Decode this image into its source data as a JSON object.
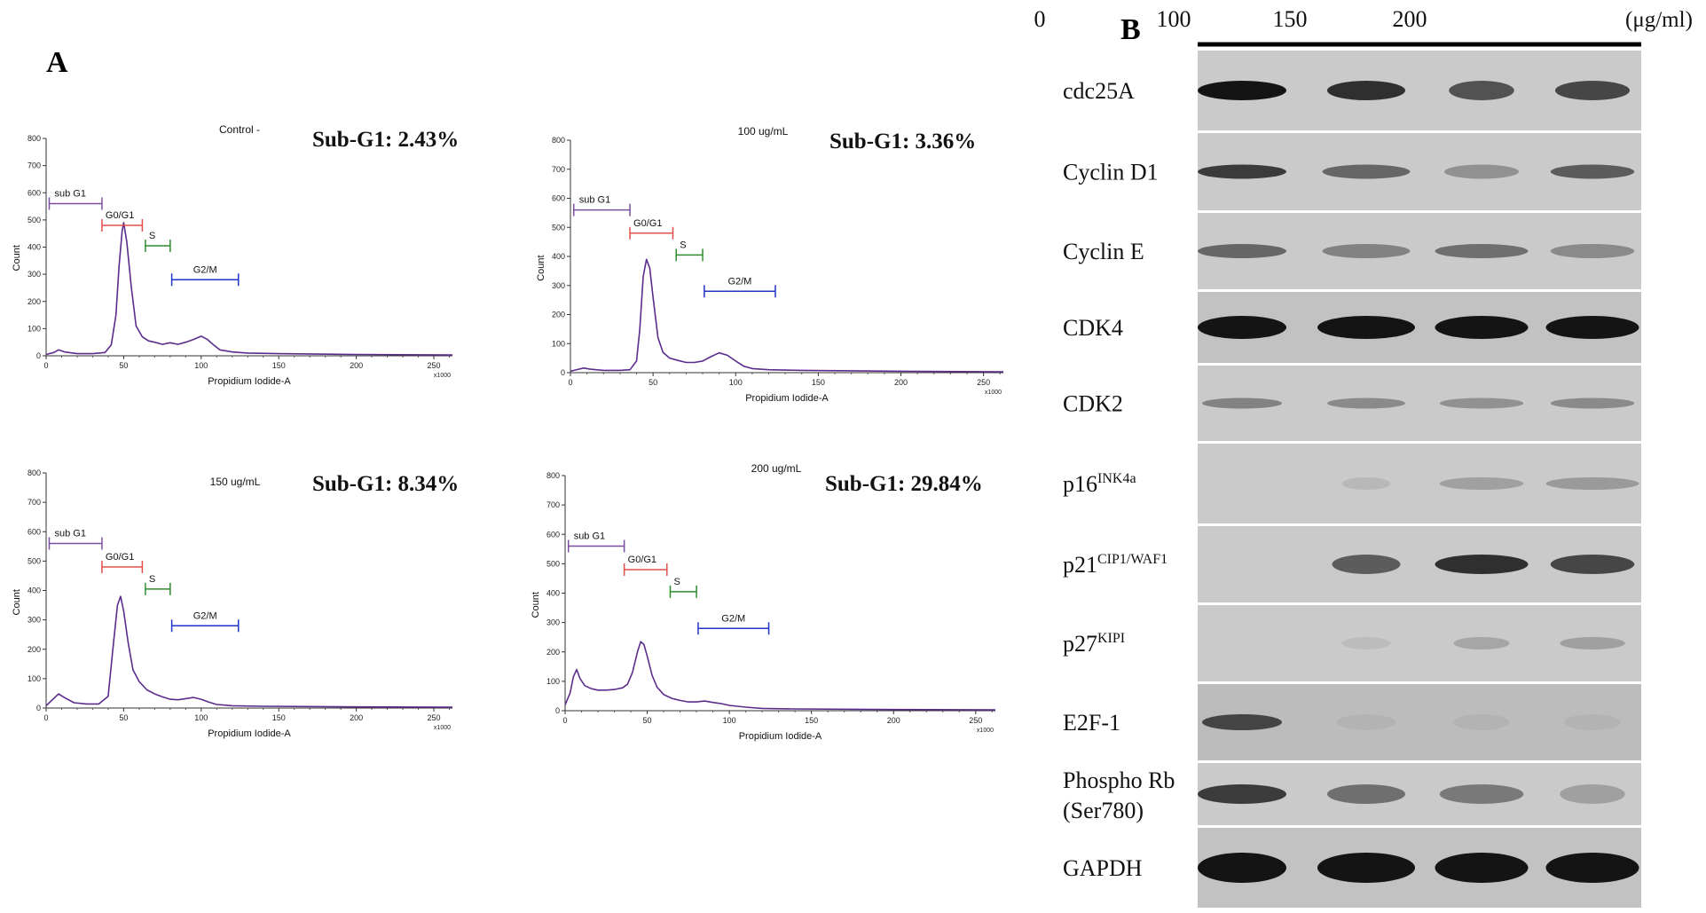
{
  "panel_a": {
    "letter": "A",
    "plots": [
      {
        "name": "control",
        "title": "Control -",
        "subg1": "Sub-G1: 2.43%",
        "ylabel": "Count",
        "xlabel": "Propidium Iodide-A",
        "x_unit": "x1000",
        "yticks": [
          "0",
          "100",
          "200",
          "300",
          "400",
          "500",
          "600",
          "700",
          "800"
        ],
        "xticks": [
          "0",
          "50",
          "100",
          "150",
          "200",
          "250"
        ],
        "gates": [
          {
            "label": "sub G1",
            "color": "#7a4fa0"
          },
          {
            "label": "G0/G1",
            "color": "#e2504a"
          },
          {
            "label": "S",
            "color": "#2e8b2e"
          },
          {
            "label": "G2/M",
            "color": "#2233cc"
          }
        ]
      },
      {
        "name": "dose-100",
        "title": "100 ug/mL",
        "subg1": "Sub-G1: 3.36%",
        "ylabel": "Count",
        "xlabel": "Propidium Iodide-A",
        "x_unit": "x1000",
        "yticks": [
          "0",
          "100",
          "200",
          "300",
          "400",
          "500",
          "600",
          "700",
          "800"
        ],
        "xticks": [
          "0",
          "50",
          "100",
          "150",
          "200",
          "250"
        ],
        "gates": [
          {
            "label": "sub G1",
            "color": "#7a4fa0"
          },
          {
            "label": "G0/G1",
            "color": "#e2504a"
          },
          {
            "label": "S",
            "color": "#2e8b2e"
          },
          {
            "label": "G2/M",
            "color": "#2233cc"
          }
        ]
      },
      {
        "name": "dose-150",
        "title": "150 ug/mL",
        "subg1": "Sub-G1: 8.34%",
        "ylabel": "Count",
        "xlabel": "Propidium Iodide-A",
        "x_unit": "x1000",
        "yticks": [
          "0",
          "100",
          "200",
          "300",
          "400",
          "500",
          "600",
          "700",
          "800"
        ],
        "xticks": [
          "0",
          "50",
          "100",
          "150",
          "200",
          "250"
        ],
        "gates": [
          {
            "label": "sub G1",
            "color": "#7a4fa0"
          },
          {
            "label": "G0/G1",
            "color": "#e2504a"
          },
          {
            "label": "S",
            "color": "#2e8b2e"
          },
          {
            "label": "G2/M",
            "color": "#2233cc"
          }
        ]
      },
      {
        "name": "dose-200",
        "title": "200 ug/mL",
        "subg1": "Sub-G1: 29.84%",
        "ylabel": "Count",
        "xlabel": "Propidium Iodide-A",
        "x_unit": "x1000",
        "yticks": [
          "0",
          "100",
          "200",
          "300",
          "400",
          "500",
          "600",
          "700",
          "800"
        ],
        "xticks": [
          "0",
          "50",
          "100",
          "150",
          "200",
          "250"
        ],
        "gates": [
          {
            "label": "sub G1",
            "color": "#7a4fa0"
          },
          {
            "label": "G0/G1",
            "color": "#e2504a"
          },
          {
            "label": "S",
            "color": "#2e8b2e"
          },
          {
            "label": "G2/M",
            "color": "#2233cc"
          }
        ]
      }
    ]
  },
  "panel_b": {
    "letter": "B",
    "doses": [
      "0",
      "100",
      "150",
      "200"
    ],
    "unit": "(μg/ml)",
    "proteins": [
      {
        "label": "cdc25A",
        "sup": ""
      },
      {
        "label": "Cyclin D1",
        "sup": ""
      },
      {
        "label": "Cyclin E",
        "sup": ""
      },
      {
        "label": "CDK4",
        "sup": ""
      },
      {
        "label": "CDK2",
        "sup": ""
      },
      {
        "label": "p16",
        "sup": "INK4a"
      },
      {
        "label": "p21",
        "sup": "CIP1/WAF1"
      },
      {
        "label": "p27",
        "sup": "KIPI"
      },
      {
        "label": "E2F-1",
        "sup": ""
      },
      {
        "label": "Phospho Rb",
        "label2": "(Ser780)",
        "sup": ""
      },
      {
        "label": "GAPDH",
        "sup": ""
      }
    ]
  },
  "chart_data": [
    {
      "type": "area",
      "name": "control",
      "title": "Control -",
      "xlabel": "Propidium Iodide-A",
      "ylabel": "Count",
      "xlim": [
        0,
        262
      ],
      "ylim": [
        0,
        800
      ],
      "x": [
        0,
        5,
        8,
        12,
        20,
        30,
        38,
        42,
        45,
        47,
        49,
        50,
        52,
        55,
        58,
        62,
        66,
        70,
        75,
        80,
        85,
        90,
        95,
        100,
        104,
        108,
        112,
        120,
        130,
        150,
        200,
        262
      ],
      "y": [
        5,
        12,
        22,
        14,
        8,
        8,
        12,
        40,
        150,
        330,
        460,
        490,
        420,
        250,
        110,
        70,
        55,
        50,
        42,
        48,
        42,
        50,
        60,
        72,
        60,
        40,
        22,
        14,
        10,
        8,
        5,
        3
      ],
      "gates": [
        {
          "label": "sub G1",
          "from": 2,
          "to": 36
        },
        {
          "label": "G0/G1",
          "from": 36,
          "to": 62
        },
        {
          "label": "S",
          "from": 64,
          "to": 80
        },
        {
          "label": "G2/M",
          "from": 81,
          "to": 124
        }
      ]
    },
    {
      "type": "area",
      "name": "dose-100",
      "title": "100 ug/mL",
      "xlabel": "Propidium Iodide-A",
      "ylabel": "Count",
      "xlim": [
        0,
        262
      ],
      "ylim": [
        0,
        800
      ],
      "x": [
        0,
        5,
        8,
        12,
        20,
        30,
        36,
        40,
        42,
        44,
        46,
        48,
        50,
        53,
        56,
        60,
        65,
        70,
        75,
        80,
        85,
        90,
        95,
        100,
        105,
        110,
        120,
        140,
        200,
        262
      ],
      "y": [
        5,
        12,
        16,
        12,
        8,
        8,
        10,
        40,
        150,
        330,
        390,
        360,
        260,
        120,
        70,
        50,
        42,
        35,
        35,
        40,
        55,
        68,
        60,
        40,
        22,
        14,
        10,
        8,
        5,
        3
      ],
      "gates": [
        {
          "label": "sub G1",
          "from": 2,
          "to": 36
        },
        {
          "label": "G0/G1",
          "from": 36,
          "to": 62
        },
        {
          "label": "S",
          "from": 64,
          "to": 80
        },
        {
          "label": "G2/M",
          "from": 81,
          "to": 124
        }
      ]
    },
    {
      "type": "area",
      "name": "dose-150",
      "title": "150 ug/mL",
      "xlabel": "Propidium Iodide-A",
      "ylabel": "Count",
      "xlim": [
        0,
        262
      ],
      "ylim": [
        0,
        800
      ],
      "x": [
        0,
        4,
        8,
        12,
        18,
        26,
        34,
        40,
        43,
        46,
        48,
        50,
        53,
        56,
        60,
        65,
        70,
        75,
        80,
        85,
        90,
        95,
        100,
        105,
        110,
        120,
        140,
        200,
        262
      ],
      "y": [
        8,
        28,
        48,
        35,
        18,
        14,
        14,
        40,
        200,
        350,
        380,
        330,
        220,
        130,
        90,
        62,
        48,
        38,
        30,
        28,
        32,
        36,
        30,
        20,
        12,
        8,
        6,
        4,
        3
      ],
      "gates": [
        {
          "label": "sub G1",
          "from": 2,
          "to": 36
        },
        {
          "label": "G0/G1",
          "from": 36,
          "to": 62
        },
        {
          "label": "S",
          "from": 64,
          "to": 80
        },
        {
          "label": "G2/M",
          "from": 81,
          "to": 124
        }
      ]
    },
    {
      "type": "area",
      "name": "dose-200",
      "title": "200 ug/mL",
      "xlabel": "Propidium Iodide-A",
      "ylabel": "Count",
      "xlim": [
        0,
        262
      ],
      "ylim": [
        0,
        800
      ],
      "x": [
        0,
        3,
        5,
        7,
        9,
        12,
        16,
        20,
        25,
        30,
        35,
        38,
        41,
        44,
        46,
        48,
        50,
        53,
        56,
        60,
        65,
        70,
        75,
        80,
        85,
        90,
        95,
        100,
        110,
        120,
        140,
        200,
        262
      ],
      "y": [
        20,
        60,
        115,
        140,
        110,
        85,
        75,
        70,
        70,
        72,
        78,
        90,
        130,
        200,
        235,
        225,
        185,
        120,
        80,
        55,
        42,
        35,
        30,
        30,
        33,
        28,
        24,
        18,
        12,
        8,
        6,
        4,
        3
      ],
      "gates": [
        {
          "label": "sub G1",
          "from": 2,
          "to": 36
        },
        {
          "label": "G0/G1",
          "from": 36,
          "to": 62
        },
        {
          "label": "S",
          "from": 64,
          "to": 80
        },
        {
          "label": "G2/M",
          "from": 81,
          "to": 124
        }
      ]
    }
  ]
}
